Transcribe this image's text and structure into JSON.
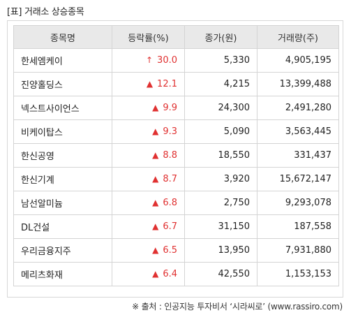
{
  "title": "[표] 거래소 상승종목",
  "headers": [
    "종목명",
    "등락률(%)",
    "종가(원)",
    "거래량(주)"
  ],
  "rows": [
    {
      "name": "한세엠케이",
      "icon": "↑",
      "rate": "30.0",
      "close": "5,330",
      "volume": "4,905,195"
    },
    {
      "name": "진양홀딩스",
      "icon": "▲",
      "rate": "12.1",
      "close": "4,215",
      "volume": "13,399,488"
    },
    {
      "name": "넥스트사이언스",
      "icon": "▲",
      "rate": "9.9",
      "close": "24,300",
      "volume": "2,491,280"
    },
    {
      "name": "비케이탑스",
      "icon": "▲",
      "rate": "9.3",
      "close": "5,090",
      "volume": "3,563,445"
    },
    {
      "name": "한신공영",
      "icon": "▲",
      "rate": "8.8",
      "close": "18,550",
      "volume": "331,437"
    },
    {
      "name": "한신기계",
      "icon": "▲",
      "rate": "8.7",
      "close": "3,920",
      "volume": "15,672,147"
    },
    {
      "name": "남선알미늄",
      "icon": "▲",
      "rate": "6.8",
      "close": "2,750",
      "volume": "9,293,078"
    },
    {
      "name": "DL건설",
      "icon": "▲",
      "rate": "6.7",
      "close": "31,150",
      "volume": "187,558"
    },
    {
      "name": "우리금융지주",
      "icon": "▲",
      "rate": "6.5",
      "close": "13,950",
      "volume": "7,931,880"
    },
    {
      "name": "메리츠화재",
      "icon": "▲",
      "rate": "6.4",
      "close": "42,550",
      "volume": "1,153,153"
    }
  ],
  "source": "※ 출처 : 인공지능 투자비서 ‘시라씨로’ (www.rassiro.com)",
  "colors": {
    "up": "#e03131",
    "header_bg": "#e9e9e9",
    "border": "#d4d4d4"
  }
}
